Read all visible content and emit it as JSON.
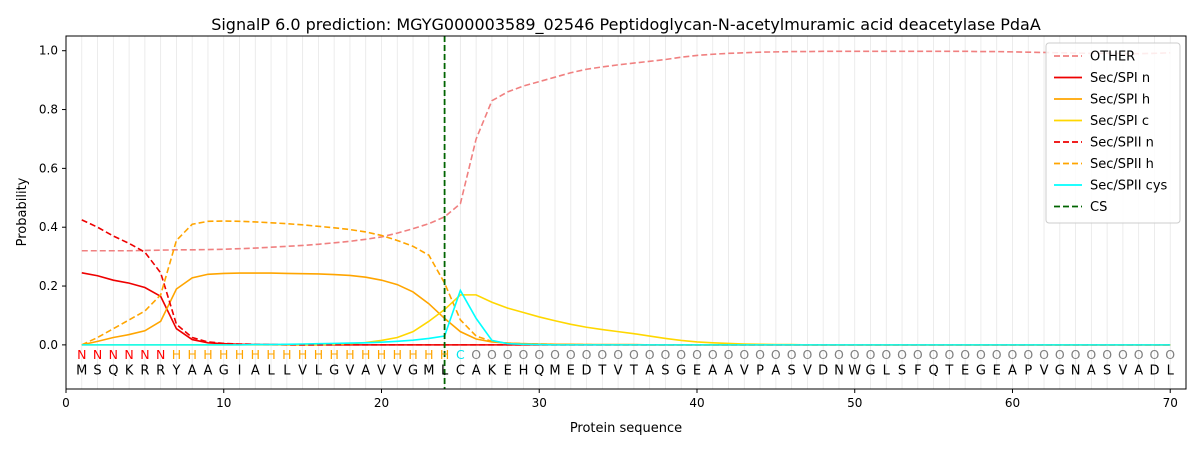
{
  "chart_data": {
    "type": "line",
    "title": "SignalP 6.0 prediction: MGYG000003589_02546 Peptidoglycan-N-acetylmuramic acid deacetylase PdaA",
    "xlabel": "Protein sequence",
    "ylabel": "Probability",
    "xlim": [
      0,
      71
    ],
    "ylim": [
      -0.15,
      1.05
    ],
    "xticks": [
      0,
      10,
      20,
      30,
      40,
      50,
      60,
      70
    ],
    "yticks": [
      0.0,
      0.2,
      0.4,
      0.6,
      0.8,
      1.0
    ],
    "xtick_labels": [
      "0",
      "10",
      "20",
      "30",
      "40",
      "50",
      "60",
      "70"
    ],
    "ytick_labels": [
      "0.0",
      "0.2",
      "0.4",
      "0.6",
      "0.8",
      "1.0"
    ],
    "grid": "vertical lines at each residue",
    "legend_position": "top-right",
    "sequence": [
      "M",
      "S",
      "Q",
      "K",
      "R",
      "R",
      "Y",
      "A",
      "A",
      "G",
      "I",
      "A",
      "L",
      "L",
      "V",
      "L",
      "G",
      "V",
      "A",
      "V",
      "V",
      "G",
      "M",
      "L",
      "C",
      "A",
      "K",
      "E",
      "H",
      "Q",
      "M",
      "E",
      "D",
      "T",
      "V",
      "T",
      "A",
      "S",
      "G",
      "E",
      "A",
      "A",
      "V",
      "P",
      "A",
      "S",
      "V",
      "D",
      "N",
      "W",
      "G",
      "L",
      "S",
      "F",
      "Q",
      "T",
      "E",
      "G",
      "E",
      "A",
      "P",
      "V",
      "G",
      "N",
      "A",
      "S",
      "V",
      "A",
      "D",
      "L"
    ],
    "region_labels": [
      "N",
      "N",
      "N",
      "N",
      "N",
      "N",
      "H",
      "H",
      "H",
      "H",
      "H",
      "H",
      "H",
      "H",
      "H",
      "H",
      "H",
      "H",
      "H",
      "H",
      "H",
      "H",
      "H",
      "H",
      "C",
      "O",
      "O",
      "O",
      "O",
      "O",
      "O",
      "O",
      "O",
      "O",
      "O",
      "O",
      "O",
      "O",
      "O",
      "O",
      "O",
      "O",
      "O",
      "O",
      "O",
      "O",
      "O",
      "O",
      "O",
      "O",
      "O",
      "O",
      "O",
      "O",
      "O",
      "O",
      "O",
      "O",
      "O",
      "O",
      "O",
      "O",
      "O",
      "O",
      "O",
      "O",
      "O",
      "O",
      "O",
      "O"
    ],
    "region_colors": {
      "N": "#ff0000",
      "H": "#ffa500",
      "C": "#00e5ee",
      "O": "#808080"
    },
    "cs_position": 24,
    "series": [
      {
        "name": "OTHER",
        "color": "#f08080",
        "dash": "dashed",
        "values": [
          0.32,
          0.32,
          0.32,
          0.32,
          0.321,
          0.322,
          0.323,
          0.323,
          0.324,
          0.325,
          0.327,
          0.329,
          0.332,
          0.335,
          0.338,
          0.342,
          0.347,
          0.352,
          0.359,
          0.367,
          0.38,
          0.395,
          0.412,
          0.435,
          0.48,
          0.7,
          0.83,
          0.86,
          0.88,
          0.895,
          0.91,
          0.925,
          0.937,
          0.945,
          0.952,
          0.958,
          0.964,
          0.97,
          0.978,
          0.984,
          0.988,
          0.991,
          0.993,
          0.995,
          0.996,
          0.997,
          0.997,
          0.998,
          0.998,
          0.998,
          0.998,
          0.998,
          0.998,
          0.998,
          0.998,
          0.998,
          0.998,
          0.997,
          0.997,
          0.996,
          0.995,
          0.994,
          0.993,
          0.992,
          0.991,
          0.991,
          0.99,
          0.99,
          0.991,
          0.993
        ]
      },
      {
        "name": "Sec/SPI n",
        "color": "#ee0000",
        "dash": "solid",
        "values": [
          0.245,
          0.235,
          0.22,
          0.21,
          0.195,
          0.165,
          0.055,
          0.018,
          0.007,
          0.004,
          0.002,
          0.001,
          0.001,
          0,
          0,
          0,
          0,
          0,
          0,
          0,
          0,
          0,
          0,
          0,
          0,
          0,
          0,
          0,
          0,
          0,
          0,
          0,
          0,
          0,
          0,
          0,
          0,
          0,
          0,
          0,
          0,
          0,
          0,
          0,
          0,
          0,
          0,
          0,
          0,
          0,
          0,
          0,
          0,
          0,
          0,
          0,
          0,
          0,
          0,
          0,
          0,
          0,
          0,
          0,
          0,
          0,
          0,
          0,
          0,
          0
        ]
      },
      {
        "name": "Sec/SPI h",
        "color": "#ffa500",
        "dash": "solid",
        "values": [
          0.0,
          0.012,
          0.025,
          0.035,
          0.048,
          0.08,
          0.19,
          0.228,
          0.24,
          0.243,
          0.244,
          0.244,
          0.244,
          0.243,
          0.242,
          0.241,
          0.239,
          0.236,
          0.23,
          0.22,
          0.205,
          0.18,
          0.14,
          0.09,
          0.045,
          0.02,
          0.01,
          0.006,
          0.004,
          0.003,
          0.002,
          0.002,
          0.001,
          0.001,
          0.001,
          0.001,
          0,
          0,
          0,
          0,
          0,
          0,
          0,
          0,
          0,
          0,
          0,
          0,
          0,
          0,
          0,
          0,
          0,
          0,
          0,
          0,
          0,
          0,
          0,
          0,
          0,
          0,
          0,
          0,
          0,
          0,
          0,
          0,
          0,
          0
        ]
      },
      {
        "name": "Sec/SPI c",
        "color": "#ffd700",
        "dash": "solid",
        "values": [
          0,
          0,
          0,
          0,
          0,
          0,
          0,
          0,
          0,
          0,
          0,
          0,
          0,
          0,
          0,
          0,
          0.002,
          0.004,
          0.008,
          0.015,
          0.025,
          0.045,
          0.08,
          0.12,
          0.17,
          0.17,
          0.145,
          0.125,
          0.11,
          0.095,
          0.082,
          0.07,
          0.06,
          0.052,
          0.045,
          0.038,
          0.03,
          0.022,
          0.015,
          0.01,
          0.007,
          0.005,
          0.003,
          0.002,
          0.001,
          0.001,
          0,
          0,
          0,
          0,
          0,
          0,
          0,
          0,
          0,
          0,
          0,
          0,
          0,
          0,
          0,
          0,
          0,
          0,
          0,
          0,
          0,
          0,
          0,
          0
        ]
      },
      {
        "name": "Sec/SPII n",
        "color": "#ee0000",
        "dash": "dashed",
        "values": [
          0.425,
          0.4,
          0.37,
          0.345,
          0.315,
          0.245,
          0.07,
          0.025,
          0.01,
          0.005,
          0.003,
          0.002,
          0.001,
          0.001,
          0,
          0,
          0,
          0,
          0,
          0,
          0,
          0,
          0,
          0,
          0,
          0,
          0,
          0,
          0,
          0,
          0,
          0,
          0,
          0,
          0,
          0,
          0,
          0,
          0,
          0,
          0,
          0,
          0,
          0,
          0,
          0,
          0,
          0,
          0,
          0,
          0,
          0,
          0,
          0,
          0,
          0,
          0,
          0,
          0,
          0,
          0,
          0,
          0,
          0,
          0,
          0,
          0,
          0,
          0,
          0
        ]
      },
      {
        "name": "Sec/SPII h",
        "color": "#ffa500",
        "dash": "dashed",
        "values": [
          0.0,
          0.025,
          0.055,
          0.085,
          0.115,
          0.17,
          0.355,
          0.41,
          0.42,
          0.421,
          0.42,
          0.418,
          0.415,
          0.412,
          0.408,
          0.403,
          0.398,
          0.392,
          0.384,
          0.372,
          0.355,
          0.335,
          0.305,
          0.21,
          0.085,
          0.03,
          0.012,
          0.006,
          0.004,
          0.003,
          0.002,
          0.001,
          0.001,
          0,
          0,
          0,
          0,
          0,
          0,
          0,
          0,
          0,
          0,
          0,
          0,
          0,
          0,
          0,
          0,
          0,
          0,
          0,
          0,
          0,
          0,
          0,
          0,
          0,
          0,
          0,
          0,
          0,
          0,
          0,
          0,
          0,
          0,
          0,
          0,
          0
        ]
      },
      {
        "name": "Sec/SPII cys",
        "color": "#00ffff",
        "dash": "solid",
        "values": [
          0,
          0,
          0,
          0,
          0,
          0,
          0,
          0,
          0,
          0,
          0,
          0.001,
          0.001,
          0.002,
          0.003,
          0.004,
          0.005,
          0.006,
          0.007,
          0.009,
          0.012,
          0.016,
          0.022,
          0.03,
          0.185,
          0.09,
          0.015,
          0.004,
          0.002,
          0.001,
          0,
          0,
          0,
          0,
          0,
          0,
          0,
          0,
          0,
          0,
          0,
          0,
          0,
          0,
          0,
          0,
          0,
          0,
          0,
          0,
          0,
          0,
          0,
          0,
          0,
          0,
          0,
          0,
          0,
          0,
          0,
          0,
          0,
          0,
          0,
          0,
          0,
          0,
          0,
          0
        ]
      }
    ],
    "cs_legend": {
      "name": "CS",
      "color": "#006400",
      "dash": "dashed"
    }
  }
}
